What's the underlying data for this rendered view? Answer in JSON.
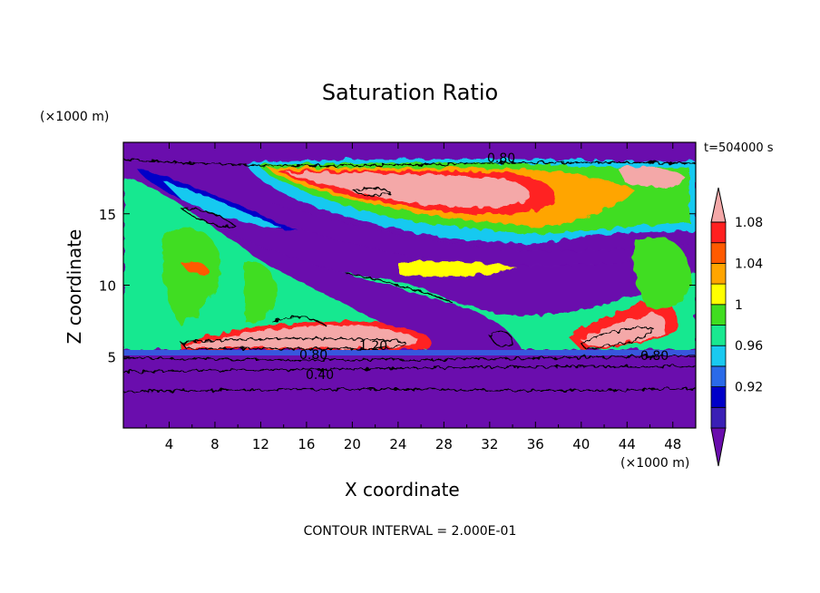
{
  "chart_data": {
    "type": "heatmap",
    "title": "Saturation Ratio",
    "xlabel": "X coordinate",
    "ylabel": "Z coordinate",
    "x_unit": "(×1000 m)",
    "z_unit": "(×1000 m)",
    "time_label": "t=504000 s",
    "footer": "CONTOUR INTERVAL = 2.000E-01",
    "xlim": [
      0,
      50
    ],
    "ylim": [
      0,
      20
    ],
    "x_ticks": [
      "4",
      "8",
      "12",
      "16",
      "20",
      "24",
      "28",
      "32",
      "36",
      "40",
      "44",
      "48"
    ],
    "y_ticks": [
      "5",
      "10",
      "15"
    ],
    "colorbar": {
      "tick_labels": [
        "0.92",
        "0.96",
        "1",
        "1.04",
        "1.08"
      ],
      "colors": [
        "#6a0dad",
        "#3a1fb5",
        "#0000c8",
        "#2a6ae8",
        "#19c9f0",
        "#19e890",
        "#40dd20",
        "#ffff00",
        "#ffa500",
        "#ff5a00",
        "#ff2020",
        "#f4a8a8"
      ]
    },
    "contour_labels": [
      "0.80",
      "1.20",
      "0.80",
      "0.40",
      "0.80"
    ]
  }
}
